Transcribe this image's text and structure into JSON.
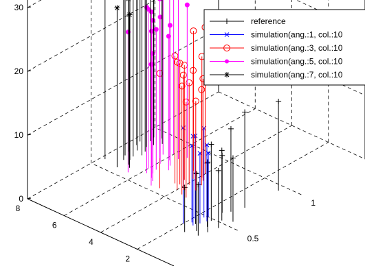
{
  "chart_data": {
    "type": "stem3",
    "title": "",
    "xlabel": "",
    "ylabel": "",
    "zlabel": "",
    "grid": true,
    "legend_position": "top-right",
    "z_ticks": [
      "0",
      "10",
      "20",
      "30"
    ],
    "y_ticks": [
      "2",
      "4",
      "6",
      "8"
    ],
    "x_ticks": [
      "0.5",
      "1"
    ],
    "zlim": [
      0,
      30
    ],
    "ylim": [
      0,
      8
    ],
    "xlim": [
      0,
      1.5
    ],
    "colors": {
      "reference": "#000000",
      "sim1": "#0000ff",
      "sim3": "#ff0000",
      "sim5": "#ff00ff",
      "sim7": "#000000"
    },
    "series": [
      {
        "name": "reference",
        "marker": "plus",
        "color": "#000000",
        "points": [
          [
            0.32,
            0.9,
            8
          ],
          [
            0.35,
            1.2,
            9
          ],
          [
            0.38,
            0.8,
            11
          ],
          [
            0.3,
            1.5,
            7
          ],
          [
            0.42,
            1.1,
            10
          ],
          [
            0.45,
            0.7,
            9
          ],
          [
            0.48,
            1.3,
            12
          ],
          [
            0.4,
            1.6,
            8
          ],
          [
            0.52,
            1.0,
            11
          ],
          [
            0.55,
            0.6,
            10
          ],
          [
            0.58,
            1.4,
            9
          ],
          [
            0.62,
            1.2,
            13
          ],
          [
            0.7,
            1.0,
            15
          ],
          [
            0.95,
            0.9,
            14
          ]
        ]
      },
      {
        "name": "simulation(ang.:1, col.:10",
        "marker": "x",
        "color": "#0000ff",
        "points": [
          [
            0.38,
            1.6,
            14
          ],
          [
            0.4,
            1.8,
            12
          ],
          [
            0.42,
            1.5,
            11
          ],
          [
            0.44,
            1.9,
            13
          ],
          [
            0.46,
            1.4,
            12
          ],
          [
            0.48,
            1.7,
            14
          ],
          [
            0.5,
            1.6,
            10
          ],
          [
            0.36,
            2.0,
            15
          ]
        ]
      },
      {
        "name": "simulation(ang.:3, col.:10",
        "marker": "circle",
        "color": "#ff0000",
        "points": [
          [
            0.6,
            4.0,
            20
          ],
          [
            0.62,
            3.8,
            18
          ],
          [
            0.65,
            4.2,
            19
          ],
          [
            0.58,
            3.6,
            17
          ],
          [
            0.68,
            3.9,
            16
          ],
          [
            0.7,
            4.3,
            18
          ],
          [
            0.72,
            3.5,
            15
          ],
          [
            0.74,
            4.1,
            17
          ],
          [
            0.76,
            3.7,
            16
          ],
          [
            0.66,
            3.4,
            14
          ],
          [
            0.64,
            4.4,
            20
          ],
          [
            0.78,
            3.9,
            19
          ],
          [
            0.8,
            4.5,
            22
          ],
          [
            0.82,
            4.0,
            23
          ],
          [
            0.55,
            4.6,
            18
          ],
          [
            0.57,
            3.3,
            15
          ]
        ]
      },
      {
        "name": "simulation(ang.:5, col.:10",
        "marker": "dot",
        "color": "#ff00ff",
        "points": [
          [
            0.62,
            5.8,
            26
          ],
          [
            0.64,
            5.6,
            24
          ],
          [
            0.66,
            6.0,
            25
          ],
          [
            0.6,
            5.4,
            23
          ],
          [
            0.68,
            5.7,
            22
          ],
          [
            0.7,
            6.1,
            24
          ],
          [
            0.72,
            5.3,
            21
          ],
          [
            0.74,
            5.9,
            23
          ],
          [
            0.76,
            5.5,
            22
          ],
          [
            0.78,
            6.2,
            25
          ],
          [
            0.58,
            5.2,
            20
          ],
          [
            0.8,
            5.8,
            26
          ],
          [
            0.82,
            6.3,
            28
          ],
          [
            0.84,
            5.6,
            27
          ],
          [
            0.86,
            6.0,
            28
          ],
          [
            0.56,
            6.4,
            22
          ],
          [
            0.88,
            5.4,
            24
          ],
          [
            0.54,
            5.0,
            19
          ]
        ]
      },
      {
        "name": "simulation(ang.:7, col.:10",
        "marker": "star",
        "color": "#000000",
        "points": [
          [
            0.64,
            7.2,
            28
          ],
          [
            0.66,
            7.0,
            27
          ],
          [
            0.68,
            7.4,
            29
          ],
          [
            0.62,
            6.8,
            26
          ],
          [
            0.7,
            7.1,
            27
          ],
          [
            0.72,
            7.5,
            28
          ],
          [
            0.74,
            6.9,
            25
          ],
          [
            0.76,
            7.3,
            27
          ],
          [
            0.78,
            7.0,
            26
          ],
          [
            0.8,
            7.6,
            30
          ],
          [
            0.6,
            6.6,
            24
          ],
          [
            0.82,
            7.2,
            29
          ],
          [
            0.84,
            7.7,
            32
          ],
          [
            0.86,
            7.1,
            30
          ],
          [
            0.88,
            7.4,
            31
          ],
          [
            0.58,
            7.8,
            27
          ],
          [
            0.9,
            6.9,
            28
          ],
          [
            0.92,
            7.5,
            33
          ],
          [
            0.94,
            7.2,
            34
          ],
          [
            0.56,
            7.0,
            25
          ]
        ]
      }
    ]
  }
}
